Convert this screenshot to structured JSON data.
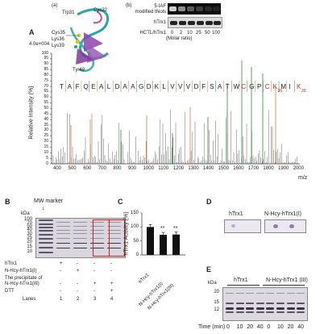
{
  "panel_a": {
    "label_a": "(a)",
    "residue_labels": [
      "Trp31",
      "Cys32",
      "Cys35",
      "Lys36",
      "Lys39",
      "Tyr49"
    ],
    "label_A": "A",
    "y_max": "4.0e+004",
    "y_ticks": [
      "100",
      "95",
      "90",
      "85",
      "80",
      "75",
      "70",
      "65",
      "60",
      "55",
      "50",
      "45",
      "40",
      "35",
      "30",
      "25",
      "20",
      "15",
      "10",
      "5",
      "0"
    ],
    "y_title": "Relative Intensity (%)",
    "x_ticks": [
      "400",
      "500",
      "600",
      "700",
      "800",
      "900",
      "1000",
      "1100",
      "1200",
      "1300",
      "1400",
      "1500",
      "1600",
      "1700",
      "1800",
      "1900",
      "2000"
    ],
    "x_unit": "m/z",
    "sequence": [
      "T",
      "A",
      "F",
      "Q",
      "E",
      "A",
      "L",
      "D",
      "A",
      "A",
      "G",
      "D",
      "K",
      "L",
      "V",
      "V",
      "V",
      "D",
      "F",
      "S",
      "A",
      "T",
      "W",
      "C",
      "G",
      "P",
      "C",
      "K",
      "M",
      "I",
      "K"
    ],
    "sequence_red": [
      23,
      26,
      27,
      30
    ],
    "subscripts": [
      {
        "after": 27,
        "text": "36"
      },
      {
        "after": 30,
        "text": "39"
      }
    ]
  },
  "panel_b_inset": {
    "label": "(b)",
    "row1": "5-IAF",
    "row1b": "modified thiols",
    "row2": "hTrx1",
    "xlabel": "HCTL/hTrx1",
    "ticks": [
      "0",
      "2",
      "10",
      "25",
      "50",
      "100"
    ],
    "unit": "(Molar ratio)"
  },
  "panel_B": {
    "label": "B",
    "marker": "MW marker",
    "kda": "kDa",
    "mw": [
      "100",
      "70",
      "50",
      "40",
      "30",
      "25",
      "20",
      "15",
      "10"
    ],
    "rows": [
      {
        "name": "hTrx1",
        "marks": [
          "+",
          "-",
          "-",
          "-"
        ]
      },
      {
        "name": "N-Hcy-hTrx1(I)",
        "marks": [
          "-",
          "+",
          "-",
          "-"
        ]
      },
      {
        "name": "The precipitate of",
        "marks": [
          "",
          "",
          "",
          ""
        ]
      },
      {
        "name": "N-Hcy-hTrx1(III)",
        "marks": [
          "-",
          "-",
          "+",
          "+"
        ]
      },
      {
        "name": "DTT",
        "marks": [
          "-",
          "-",
          "-",
          "+"
        ]
      }
    ],
    "lanes_label": "Lanes",
    "lanes": [
      "1",
      "2",
      "3",
      "4"
    ]
  },
  "panel_C": {
    "label": "C",
    "y_title": "hTrx1 Activity (%)",
    "y_ticks": [
      "150",
      "100",
      "50",
      "0"
    ],
    "categories": [
      "hTrx1",
      "N-Hcy-hTrx1(I)",
      "N-Hcy-hTrx1(III)"
    ],
    "values": [
      100,
      72,
      73
    ],
    "stars": [
      "",
      "**",
      "**"
    ]
  },
  "panel_D": {
    "label": "D",
    "left": "hTrx1",
    "right": "N-Hcy-hTrx1(I)"
  },
  "panel_E": {
    "label": "E",
    "kda": "kDa",
    "mw": [
      "20",
      "15",
      "12"
    ],
    "group1": "hTrx1",
    "group2": "N-Hcy-hTrx1 (III)",
    "time_label": "Time (min)",
    "times": [
      "0",
      "10",
      "20",
      "40",
      "0",
      "10",
      "20",
      "40"
    ]
  },
  "colors": {
    "red": "#d42020",
    "green": "#2e8b3d",
    "orange": "#e07a3a",
    "gel": "#d8d4dc",
    "gel_band": "#4a4458"
  }
}
